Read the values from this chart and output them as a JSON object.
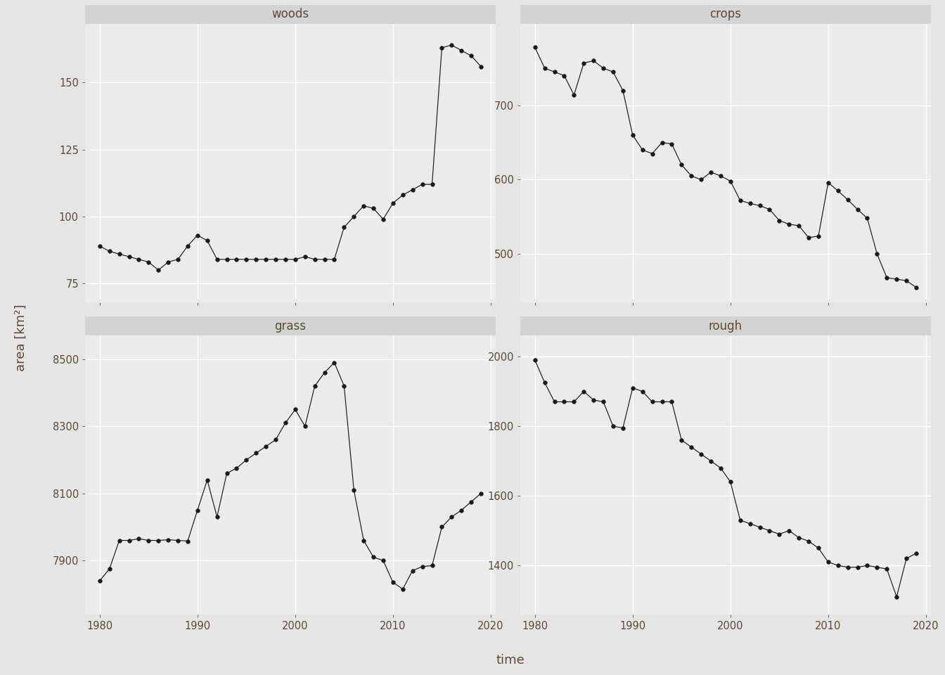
{
  "years": [
    1980,
    1981,
    1982,
    1983,
    1984,
    1985,
    1986,
    1987,
    1988,
    1989,
    1990,
    1991,
    1992,
    1993,
    1994,
    1995,
    1996,
    1997,
    1998,
    1999,
    2000,
    2001,
    2002,
    2003,
    2004,
    2005,
    2006,
    2007,
    2008,
    2009,
    2010,
    2011,
    2012,
    2013,
    2014,
    2015,
    2016,
    2017,
    2018,
    2019
  ],
  "woods": [
    89,
    87,
    86,
    85,
    84,
    83,
    80,
    83,
    84,
    89,
    93,
    91,
    84,
    84,
    84,
    84,
    84,
    84,
    84,
    84,
    84,
    85,
    84,
    84,
    84,
    96,
    100,
    104,
    103,
    99,
    105,
    108,
    110,
    112,
    112,
    163,
    164,
    162,
    160,
    156
  ],
  "crops": [
    778,
    750,
    745,
    740,
    714,
    757,
    760,
    750,
    745,
    720,
    660,
    640,
    635,
    650,
    648,
    620,
    605,
    600,
    610,
    605,
    598,
    572,
    568,
    565,
    560,
    545,
    540,
    538,
    522,
    524,
    596,
    585,
    573,
    560,
    548,
    500,
    468,
    466,
    464,
    455
  ],
  "grass": [
    7840,
    7875,
    7960,
    7960,
    7965,
    7960,
    7960,
    7962,
    7960,
    7958,
    8050,
    8140,
    8030,
    8160,
    8175,
    8200,
    8220,
    8240,
    8260,
    8310,
    8350,
    8300,
    8420,
    8460,
    8490,
    8420,
    8110,
    7960,
    7910,
    7900,
    7835,
    7815,
    7870,
    7882,
    7885,
    8000,
    8030,
    8050,
    8075,
    8100
  ],
  "rough": [
    1990,
    1925,
    1870,
    1870,
    1870,
    1900,
    1875,
    1870,
    1800,
    1795,
    1910,
    1900,
    1870,
    1870,
    1870,
    1760,
    1740,
    1720,
    1700,
    1680,
    1640,
    1530,
    1520,
    1510,
    1500,
    1490,
    1500,
    1480,
    1470,
    1450,
    1410,
    1400,
    1395,
    1395,
    1400,
    1395,
    1390,
    1310,
    1420,
    1435
  ],
  "panel_bg": "#ebebeb",
  "fig_bg": "#e5e5e5",
  "grid_color": "#ffffff",
  "line_color": "#1a1a1a",
  "marker_color": "#1a1a1a",
  "title_color": "#5c4a32",
  "axis_label_color": "#5c4a32",
  "tick_color": "#5c4a32",
  "strip_bg": "#d3d3d3",
  "titles": [
    "woods",
    "crops",
    "grass",
    "rough"
  ],
  "xlabel": "time",
  "ylabel": "area [km²]",
  "xlim": [
    1978.5,
    2020.5
  ],
  "woods_ylim": [
    68,
    172
  ],
  "crops_ylim": [
    435,
    810
  ],
  "grass_ylim": [
    7740,
    8570
  ],
  "rough_ylim": [
    1260,
    2060
  ],
  "woods_yticks": [
    75,
    100,
    125,
    150
  ],
  "crops_yticks": [
    500,
    600,
    700
  ],
  "grass_yticks": [
    7900,
    8100,
    8300,
    8500
  ],
  "rough_yticks": [
    1400,
    1600,
    1800,
    2000
  ],
  "xticks": [
    1980,
    1990,
    2000,
    2010,
    2020
  ]
}
